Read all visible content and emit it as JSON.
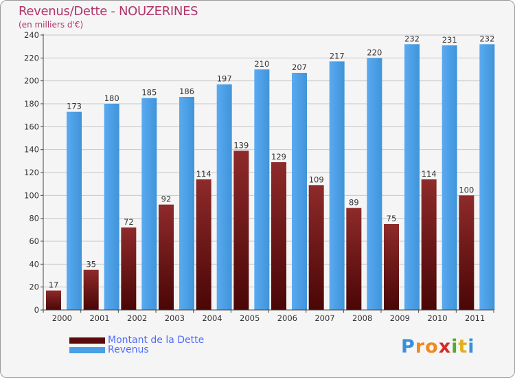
{
  "chart_data": {
    "type": "bar",
    "title": "Revenus/Dette - NOUZERINES",
    "subtitle": "(en milliers d'€)",
    "categories": [
      "2000",
      "2001",
      "2002",
      "2003",
      "2004",
      "2005",
      "2006",
      "2007",
      "2008",
      "2009",
      "2010",
      "2011"
    ],
    "series": [
      {
        "name": "Montant de la Dette",
        "color": "#7a1a1a",
        "values": [
          17,
          35,
          72,
          92,
          114,
          139,
          129,
          109,
          89,
          75,
          114,
          100
        ]
      },
      {
        "name": "Revenus",
        "color": "#4aa0e6",
        "values": [
          173,
          180,
          185,
          186,
          197,
          210,
          207,
          217,
          220,
          232,
          231,
          232
        ]
      }
    ],
    "ylim": [
      0,
      240
    ],
    "yticks": [
      0,
      20,
      40,
      60,
      80,
      100,
      120,
      140,
      160,
      180,
      200,
      220,
      240
    ],
    "grid": true,
    "legend": "bottom-left"
  },
  "logo": {
    "letters": [
      "P",
      "r",
      "o",
      "x",
      "i",
      "t",
      "i"
    ],
    "colors": [
      "#3b8fd8",
      "#f08a1c",
      "#f08a1c",
      "#d42a2a",
      "#55aa33",
      "#e0b020",
      "#3b8fd8"
    ]
  }
}
